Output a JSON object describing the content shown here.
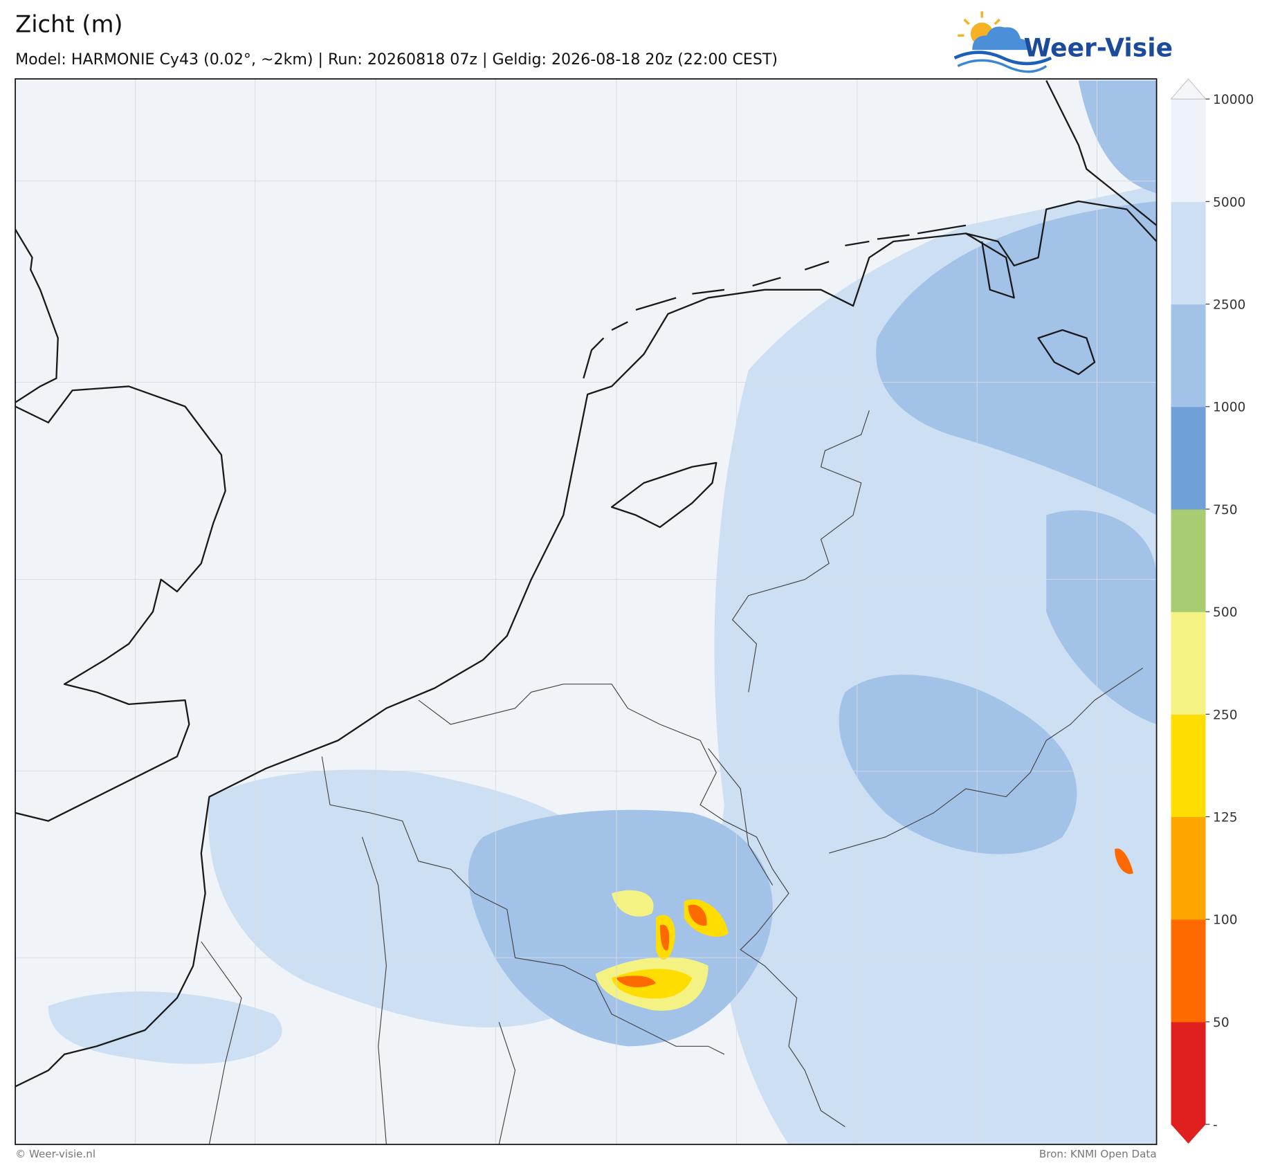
{
  "header": {
    "title": "Zicht (m)",
    "subtitle": "Model: HARMONIE Cy43 (0.02°, ~2km)  |  Run: 20260818 07z  |  Geldig: 2026-08-18 20z (22:00 CEST)"
  },
  "logo": {
    "text": "Weer-Visie"
  },
  "colorbar": {
    "ticks": [
      "-",
      50,
      100,
      125,
      250,
      500,
      750,
      1000,
      2500,
      5000,
      10000
    ],
    "colors": [
      "#e01f1f",
      "#ff6a00",
      "#ffa500",
      "#ffdd00",
      "#f4f283",
      "#a8cc72",
      "#6fa1d8",
      "#a3c2e8",
      "#cddff2",
      "#eef3f9"
    ],
    "under_color": "#e01f1f",
    "over_color": "#f4f6fa"
  },
  "footer": {
    "left": "© Weer-visie.nl",
    "right": "Bron: KNMI Open Data"
  }
}
